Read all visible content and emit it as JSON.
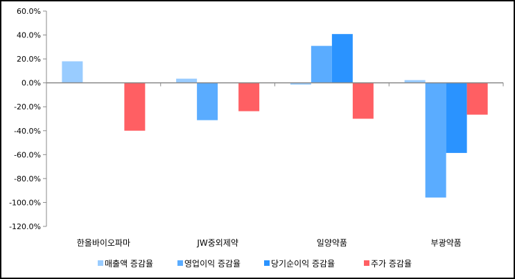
{
  "chart_data": {
    "type": "bar",
    "title": "",
    "xlabel": "",
    "ylabel": "",
    "categories": [
      "한올바이오파마",
      "JW중외제약",
      "일양약품",
      "부광약품"
    ],
    "series": [
      {
        "name": "매출액 증감율",
        "color": "#99ccff",
        "values": [
          18.0,
          3.5,
          -1.5,
          2.3
        ]
      },
      {
        "name": "영업이익 증감율",
        "color": "#5aacff",
        "values": [
          null,
          -31.2,
          30.9,
          -95.9
        ]
      },
      {
        "name": "당기순이익 증감율",
        "color": "#2a93ff",
        "values": [
          null,
          null,
          40.8,
          -58.6
        ]
      },
      {
        "name": "주가 증감율",
        "color": "#ff5f63",
        "values": [
          -40.0,
          -23.7,
          -30.0,
          -26.6
        ]
      }
    ],
    "ylim": [
      -120,
      60
    ],
    "yticks": [
      60,
      40,
      20,
      0,
      -20,
      -40,
      -60,
      -80,
      -100,
      -120
    ],
    "ytick_labels": [
      "60.0%",
      "40.0%",
      "20.0%",
      "0.0%",
      "-20.0%",
      "-40.0%",
      "-60.0%",
      "-80.0%",
      "-100.0%",
      "-120.0%"
    ],
    "grid": false,
    "legend": "bottom"
  }
}
